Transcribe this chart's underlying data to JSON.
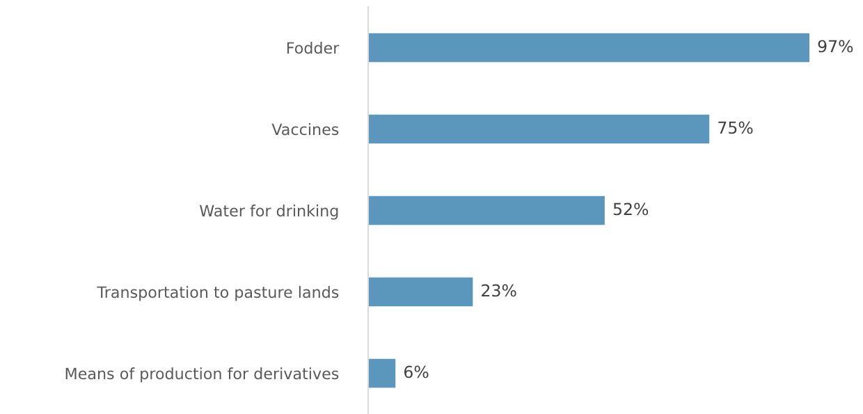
{
  "chart_data": {
    "type": "bar",
    "orientation": "horizontal",
    "categories": [
      "Fodder",
      "Vaccines",
      "Water for drinking",
      "Transportation to pasture lands",
      "Means of production for derivatives"
    ],
    "values": [
      97,
      75,
      52,
      23,
      6
    ],
    "value_labels": [
      "97%",
      "75%",
      "52%",
      "23%",
      "6%"
    ],
    "color": "#5b96bd",
    "grid": false,
    "legend": false
  }
}
